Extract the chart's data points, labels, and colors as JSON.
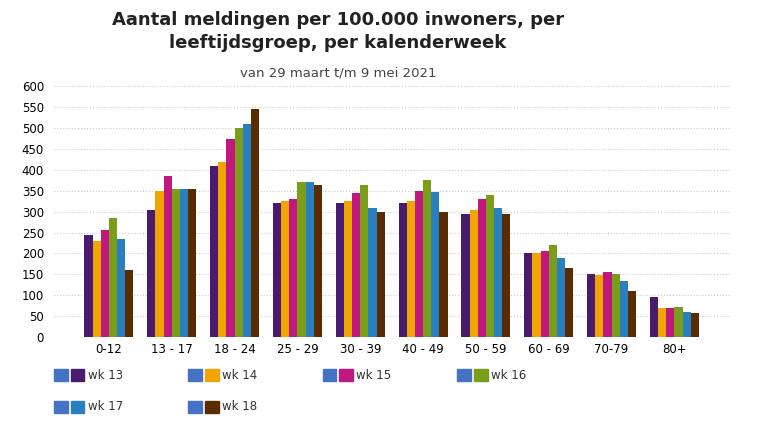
{
  "title": "Aantal meldingen per 100.000 inwoners, per\nleeftijdsgroep, per kalenderweek",
  "subtitle": "van 29 maart t/m 9 mei 2021",
  "categories": [
    "0-12",
    "13 - 17",
    "18 - 24",
    "25 - 29",
    "30 - 39",
    "40 - 49",
    "50 - 59",
    "60 - 69",
    "70-79",
    "80+"
  ],
  "series": {
    "wk 13": [
      245,
      305,
      410,
      320,
      320,
      320,
      295,
      200,
      150,
      95
    ],
    "wk 14": [
      230,
      350,
      420,
      325,
      325,
      325,
      305,
      200,
      148,
      70
    ],
    "wk 15": [
      255,
      385,
      475,
      330,
      345,
      350,
      330,
      205,
      155,
      70
    ],
    "wk 16": [
      285,
      355,
      500,
      370,
      365,
      375,
      340,
      220,
      150,
      72
    ],
    "wk 17": [
      235,
      355,
      510,
      370,
      310,
      348,
      310,
      190,
      133,
      60
    ],
    "wk 18": [
      160,
      355,
      545,
      365,
      300,
      300,
      295,
      165,
      110,
      57
    ]
  },
  "colors": {
    "wk 13": "#4a1a6e",
    "wk 14": "#f0a500",
    "wk 15": "#c0187e",
    "wk 16": "#7a9e1a",
    "wk 17": "#2980c0",
    "wk 18": "#5a2a00"
  },
  "legend_row1": [
    "wk 13",
    "wk 14",
    "wk 15",
    "wk 16"
  ],
  "legend_row2": [
    "wk 17",
    "wk 18"
  ],
  "ylim": [
    0,
    600
  ],
  "yticks": [
    0,
    50,
    100,
    150,
    200,
    250,
    300,
    350,
    400,
    450,
    500,
    550,
    600
  ],
  "background_color": "#ffffff",
  "grid_color": "#cccccc",
  "title_fontsize": 13,
  "subtitle_fontsize": 9.5,
  "bar_width": 0.13
}
